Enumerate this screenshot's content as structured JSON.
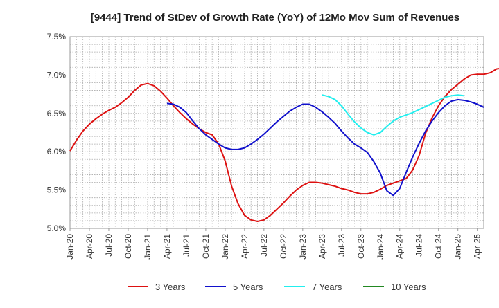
{
  "chart_data": {
    "type": "line",
    "title": "[9444]  Trend of StDev of Growth Rate (YoY) of 12Mo Mov Sum of Revenues",
    "xlabel": "",
    "ylabel": "",
    "ylim": [
      5.0,
      7.5
    ],
    "yticks": [
      "5.0%",
      "5.5%",
      "6.0%",
      "6.5%",
      "7.0%",
      "7.5%"
    ],
    "ytick_values": [
      5.0,
      5.5,
      6.0,
      6.5,
      7.0,
      7.5
    ],
    "xticks": [
      "Jan-20",
      "Apr-20",
      "Jul-20",
      "Oct-20",
      "Jan-21",
      "Apr-21",
      "Jul-21",
      "Oct-21",
      "Jan-22",
      "Apr-22",
      "Jul-22",
      "Oct-22",
      "Jan-23",
      "Apr-23",
      "Jul-23",
      "Oct-23",
      "Jan-24",
      "Apr-24",
      "Jul-24",
      "Oct-24",
      "Jan-25",
      "Apr-25"
    ],
    "x_domain_months": [
      0,
      64
    ],
    "grid": true,
    "legend_position": "bottom",
    "series": [
      {
        "name": "3 Years",
        "color": "#dd1111",
        "start_month": 0,
        "values": [
          6.01,
          6.15,
          6.27,
          6.36,
          6.43,
          6.49,
          6.54,
          6.58,
          6.64,
          6.71,
          6.8,
          6.87,
          6.89,
          6.86,
          6.79,
          6.7,
          6.6,
          6.51,
          6.43,
          6.36,
          6.3,
          6.25,
          6.22,
          6.1,
          5.88,
          5.55,
          5.32,
          5.17,
          5.11,
          5.09,
          5.11,
          5.17,
          5.25,
          5.33,
          5.42,
          5.5,
          5.56,
          5.6,
          5.6,
          5.59,
          5.57,
          5.55,
          5.52,
          5.5,
          5.47,
          5.45,
          5.45,
          5.47,
          5.51,
          5.56,
          5.59,
          5.62,
          5.65,
          5.76,
          5.95,
          6.24,
          6.44,
          6.6,
          6.72,
          6.81,
          6.88,
          6.95,
          7.0,
          7.01,
          7.01,
          7.03,
          7.08,
          7.09
        ]
      },
      {
        "name": "5 Years",
        "color": "#1111cc",
        "start_month": 15,
        "values": [
          6.63,
          6.62,
          6.58,
          6.51,
          6.4,
          6.3,
          6.22,
          6.16,
          6.1,
          6.05,
          6.03,
          6.03,
          6.05,
          6.1,
          6.16,
          6.23,
          6.31,
          6.39,
          6.46,
          6.53,
          6.58,
          6.62,
          6.62,
          6.58,
          6.52,
          6.45,
          6.37,
          6.27,
          6.18,
          6.1,
          6.05,
          5.99,
          5.87,
          5.72,
          5.49,
          5.43,
          5.52,
          5.73,
          5.93,
          6.11,
          6.27,
          6.4,
          6.51,
          6.6,
          6.66,
          6.68,
          6.67,
          6.65,
          6.62,
          6.58
        ]
      },
      {
        "name": "7 Years",
        "color": "#22eeee",
        "start_month": 39,
        "values": [
          6.74,
          6.72,
          6.68,
          6.6,
          6.49,
          6.39,
          6.31,
          6.25,
          6.22,
          6.25,
          6.33,
          6.4,
          6.45,
          6.48,
          6.51,
          6.55,
          6.59,
          6.63,
          6.67,
          6.71,
          6.73,
          6.74,
          6.73
        ]
      },
      {
        "name": "10 Years",
        "color": "#228822",
        "start_month": 0,
        "values": []
      }
    ]
  }
}
